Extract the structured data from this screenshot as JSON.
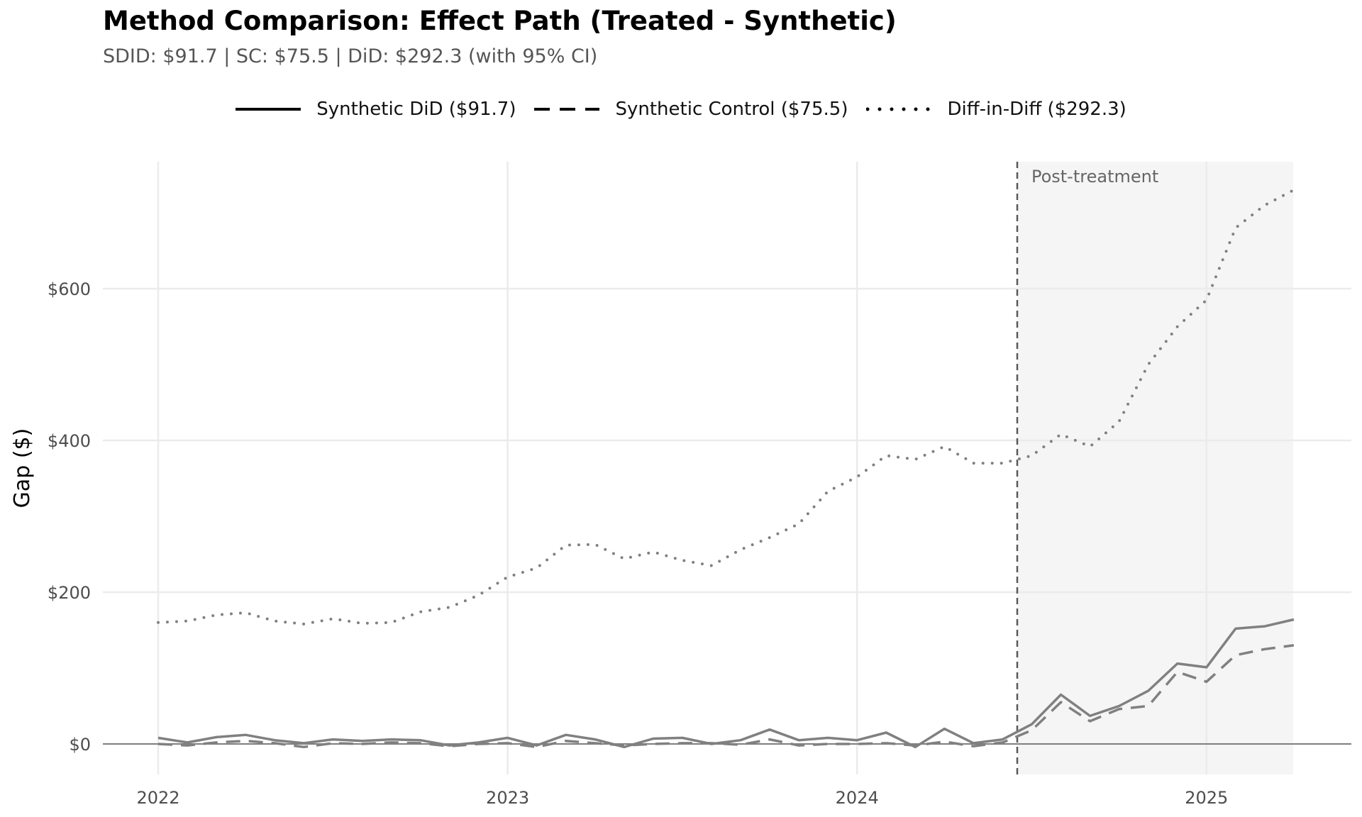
{
  "chart_data": {
    "type": "line",
    "title": "Method Comparison: Effect Path (Treated - Synthetic)",
    "subtitle": "SDID: $91.7 | SC: $75.5 | DiD: $292.3 (with 95% CI)",
    "xlabel": "",
    "ylabel": "Gap ($)",
    "x_tick_labels": [
      "2022",
      "2023",
      "2024",
      "2025"
    ],
    "y_tick_labels": [
      "$0",
      "$200",
      "$400",
      "$600"
    ],
    "y_ticks": [
      0,
      200,
      400,
      600
    ],
    "ylim": [
      -40,
      770
    ],
    "legend_position": "top",
    "grid": true,
    "colors": {
      "line": "#808080",
      "grid": "#ebebeb",
      "shade": "#f5f5f5",
      "zero_line": "#808080",
      "treatment_line": "#595959"
    },
    "treatment": {
      "label": "Post-treatment",
      "start_month_index": 30,
      "end_month_index": 39
    },
    "series": [
      {
        "name": "Synthetic DiD ($91.7)",
        "style": "solid",
        "values": [
          8,
          2,
          9,
          12,
          5,
          1,
          6,
          4,
          6,
          5,
          -2,
          2,
          8,
          -2,
          12,
          6,
          -4,
          7,
          8,
          0,
          5,
          19,
          5,
          8,
          5,
          15,
          -4,
          20,
          1,
          6,
          26,
          65,
          37,
          50,
          70,
          106,
          101,
          152,
          155,
          164
        ]
      },
      {
        "name": "Synthetic Control ($75.5)",
        "style": "dashed",
        "values": [
          0,
          -2,
          2,
          4,
          1,
          -4,
          1,
          0,
          2,
          1,
          -3,
          0,
          1,
          -4,
          4,
          1,
          -2,
          0,
          1,
          1,
          -1,
          6,
          -2,
          0,
          0,
          1,
          -2,
          3,
          -3,
          2,
          18,
          55,
          30,
          46,
          50,
          95,
          82,
          117,
          125,
          130
        ]
      },
      {
        "name": "Diff-in-Diff ($292.3)",
        "style": "dotted",
        "values": [
          160,
          162,
          170,
          173,
          162,
          158,
          165,
          159,
          160,
          174,
          180,
          196,
          220,
          232,
          262,
          263,
          244,
          253,
          242,
          235,
          256,
          272,
          290,
          333,
          352,
          380,
          375,
          392,
          370,
          370,
          380,
          408,
          392,
          425,
          500,
          550,
          585,
          680,
          710,
          730
        ]
      }
    ]
  }
}
